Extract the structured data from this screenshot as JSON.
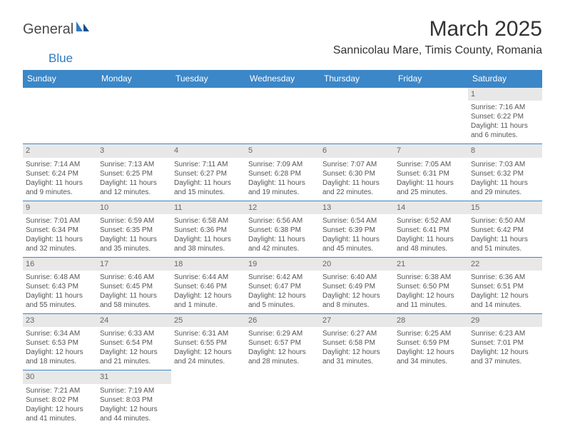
{
  "logo": {
    "text1": "General",
    "text2": "Blue"
  },
  "title": "March 2025",
  "location": "Sannicolau Mare, Timis County, Romania",
  "colors": {
    "header_bg": "#3b87c8",
    "header_text": "#ffffff",
    "daynum_bg": "#e8e8e8",
    "cell_text": "#555555",
    "border": "#3b87c8",
    "logo_blue": "#2f7bbf"
  },
  "day_headers": [
    "Sunday",
    "Monday",
    "Tuesday",
    "Wednesday",
    "Thursday",
    "Friday",
    "Saturday"
  ],
  "weeks": [
    [
      {
        "n": "",
        "lines": []
      },
      {
        "n": "",
        "lines": []
      },
      {
        "n": "",
        "lines": []
      },
      {
        "n": "",
        "lines": []
      },
      {
        "n": "",
        "lines": []
      },
      {
        "n": "",
        "lines": []
      },
      {
        "n": "1",
        "lines": [
          "Sunrise: 7:16 AM",
          "Sunset: 6:22 PM",
          "Daylight: 11 hours",
          "and 6 minutes."
        ]
      }
    ],
    [
      {
        "n": "2",
        "lines": [
          "Sunrise: 7:14 AM",
          "Sunset: 6:24 PM",
          "Daylight: 11 hours",
          "and 9 minutes."
        ]
      },
      {
        "n": "3",
        "lines": [
          "Sunrise: 7:13 AM",
          "Sunset: 6:25 PM",
          "Daylight: 11 hours",
          "and 12 minutes."
        ]
      },
      {
        "n": "4",
        "lines": [
          "Sunrise: 7:11 AM",
          "Sunset: 6:27 PM",
          "Daylight: 11 hours",
          "and 15 minutes."
        ]
      },
      {
        "n": "5",
        "lines": [
          "Sunrise: 7:09 AM",
          "Sunset: 6:28 PM",
          "Daylight: 11 hours",
          "and 19 minutes."
        ]
      },
      {
        "n": "6",
        "lines": [
          "Sunrise: 7:07 AM",
          "Sunset: 6:30 PM",
          "Daylight: 11 hours",
          "and 22 minutes."
        ]
      },
      {
        "n": "7",
        "lines": [
          "Sunrise: 7:05 AM",
          "Sunset: 6:31 PM",
          "Daylight: 11 hours",
          "and 25 minutes."
        ]
      },
      {
        "n": "8",
        "lines": [
          "Sunrise: 7:03 AM",
          "Sunset: 6:32 PM",
          "Daylight: 11 hours",
          "and 29 minutes."
        ]
      }
    ],
    [
      {
        "n": "9",
        "lines": [
          "Sunrise: 7:01 AM",
          "Sunset: 6:34 PM",
          "Daylight: 11 hours",
          "and 32 minutes."
        ]
      },
      {
        "n": "10",
        "lines": [
          "Sunrise: 6:59 AM",
          "Sunset: 6:35 PM",
          "Daylight: 11 hours",
          "and 35 minutes."
        ]
      },
      {
        "n": "11",
        "lines": [
          "Sunrise: 6:58 AM",
          "Sunset: 6:36 PM",
          "Daylight: 11 hours",
          "and 38 minutes."
        ]
      },
      {
        "n": "12",
        "lines": [
          "Sunrise: 6:56 AM",
          "Sunset: 6:38 PM",
          "Daylight: 11 hours",
          "and 42 minutes."
        ]
      },
      {
        "n": "13",
        "lines": [
          "Sunrise: 6:54 AM",
          "Sunset: 6:39 PM",
          "Daylight: 11 hours",
          "and 45 minutes."
        ]
      },
      {
        "n": "14",
        "lines": [
          "Sunrise: 6:52 AM",
          "Sunset: 6:41 PM",
          "Daylight: 11 hours",
          "and 48 minutes."
        ]
      },
      {
        "n": "15",
        "lines": [
          "Sunrise: 6:50 AM",
          "Sunset: 6:42 PM",
          "Daylight: 11 hours",
          "and 51 minutes."
        ]
      }
    ],
    [
      {
        "n": "16",
        "lines": [
          "Sunrise: 6:48 AM",
          "Sunset: 6:43 PM",
          "Daylight: 11 hours",
          "and 55 minutes."
        ]
      },
      {
        "n": "17",
        "lines": [
          "Sunrise: 6:46 AM",
          "Sunset: 6:45 PM",
          "Daylight: 11 hours",
          "and 58 minutes."
        ]
      },
      {
        "n": "18",
        "lines": [
          "Sunrise: 6:44 AM",
          "Sunset: 6:46 PM",
          "Daylight: 12 hours",
          "and 1 minute."
        ]
      },
      {
        "n": "19",
        "lines": [
          "Sunrise: 6:42 AM",
          "Sunset: 6:47 PM",
          "Daylight: 12 hours",
          "and 5 minutes."
        ]
      },
      {
        "n": "20",
        "lines": [
          "Sunrise: 6:40 AM",
          "Sunset: 6:49 PM",
          "Daylight: 12 hours",
          "and 8 minutes."
        ]
      },
      {
        "n": "21",
        "lines": [
          "Sunrise: 6:38 AM",
          "Sunset: 6:50 PM",
          "Daylight: 12 hours",
          "and 11 minutes."
        ]
      },
      {
        "n": "22",
        "lines": [
          "Sunrise: 6:36 AM",
          "Sunset: 6:51 PM",
          "Daylight: 12 hours",
          "and 14 minutes."
        ]
      }
    ],
    [
      {
        "n": "23",
        "lines": [
          "Sunrise: 6:34 AM",
          "Sunset: 6:53 PM",
          "Daylight: 12 hours",
          "and 18 minutes."
        ]
      },
      {
        "n": "24",
        "lines": [
          "Sunrise: 6:33 AM",
          "Sunset: 6:54 PM",
          "Daylight: 12 hours",
          "and 21 minutes."
        ]
      },
      {
        "n": "25",
        "lines": [
          "Sunrise: 6:31 AM",
          "Sunset: 6:55 PM",
          "Daylight: 12 hours",
          "and 24 minutes."
        ]
      },
      {
        "n": "26",
        "lines": [
          "Sunrise: 6:29 AM",
          "Sunset: 6:57 PM",
          "Daylight: 12 hours",
          "and 28 minutes."
        ]
      },
      {
        "n": "27",
        "lines": [
          "Sunrise: 6:27 AM",
          "Sunset: 6:58 PM",
          "Daylight: 12 hours",
          "and 31 minutes."
        ]
      },
      {
        "n": "28",
        "lines": [
          "Sunrise: 6:25 AM",
          "Sunset: 6:59 PM",
          "Daylight: 12 hours",
          "and 34 minutes."
        ]
      },
      {
        "n": "29",
        "lines": [
          "Sunrise: 6:23 AM",
          "Sunset: 7:01 PM",
          "Daylight: 12 hours",
          "and 37 minutes."
        ]
      }
    ],
    [
      {
        "n": "30",
        "lines": [
          "Sunrise: 7:21 AM",
          "Sunset: 8:02 PM",
          "Daylight: 12 hours",
          "and 41 minutes."
        ]
      },
      {
        "n": "31",
        "lines": [
          "Sunrise: 7:19 AM",
          "Sunset: 8:03 PM",
          "Daylight: 12 hours",
          "and 44 minutes."
        ]
      },
      {
        "n": "",
        "lines": []
      },
      {
        "n": "",
        "lines": []
      },
      {
        "n": "",
        "lines": []
      },
      {
        "n": "",
        "lines": []
      },
      {
        "n": "",
        "lines": []
      }
    ]
  ]
}
